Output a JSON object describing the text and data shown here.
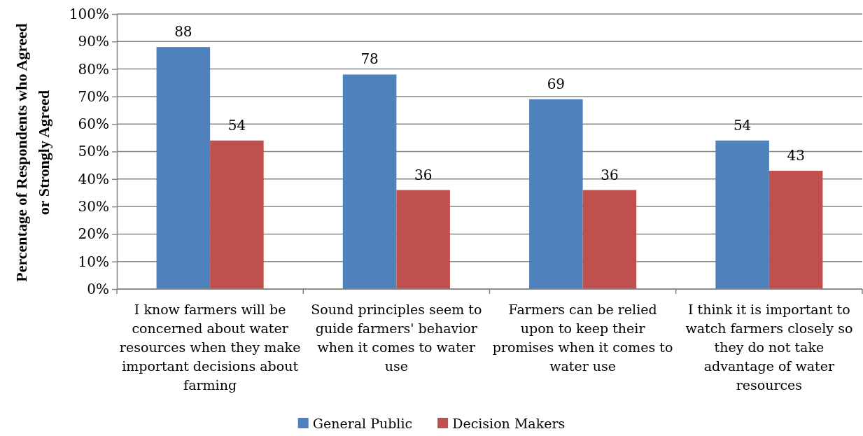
{
  "chart_data": {
    "type": "bar",
    "ylabel": "Percentage of Respondents who Agreed or Strongly Agreed",
    "categories": [
      "I know farmers will be concerned about water resources when they make important decisions about farming",
      "Sound principles seem to guide farmers' behavior when it comes to water use",
      "Farmers can be relied upon to keep their promises when it comes to water use",
      "I think it is important to watch farmers closely so they do not take advantage of water resources"
    ],
    "series": [
      {
        "name": "General Public",
        "color": "#4f81bd",
        "values": [
          88,
          78,
          69,
          54
        ]
      },
      {
        "name": "Decision Makers",
        "color": "#c0504d",
        "values": [
          54,
          36,
          36,
          43
        ]
      }
    ],
    "ylim": [
      0,
      100
    ],
    "yticks": [
      {
        "value": 0,
        "label": "0%"
      },
      {
        "value": 10,
        "label": "10%"
      },
      {
        "value": 20,
        "label": "20%"
      },
      {
        "value": 30,
        "label": "30%"
      },
      {
        "value": 40,
        "label": "40%"
      },
      {
        "value": 50,
        "label": "50%"
      },
      {
        "value": 60,
        "label": "60%"
      },
      {
        "value": 70,
        "label": "70%"
      },
      {
        "value": 80,
        "label": "80%"
      },
      {
        "value": 90,
        "label": "90%"
      },
      {
        "value": 100,
        "label": "100%"
      }
    ],
    "grid": "y",
    "legend": "bottom",
    "data_labels": true
  }
}
